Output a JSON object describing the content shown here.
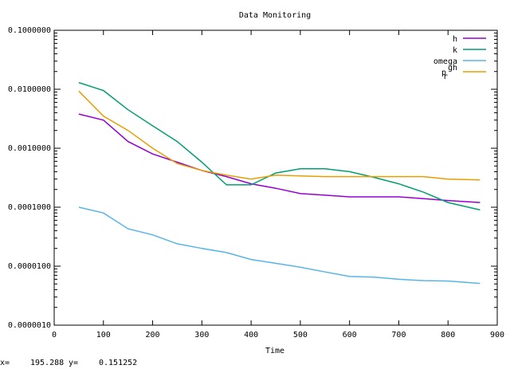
{
  "chart_data": {
    "type": "line",
    "title": "Data Monitoring",
    "xlabel": "Time",
    "ylabel": "",
    "xlim": [
      0,
      900
    ],
    "ylim": [
      1e-06,
      0.1
    ],
    "y_scale": "log",
    "grid": false,
    "legend_position": "top-right",
    "x_ticks": [
      "0",
      "100",
      "200",
      "300",
      "400",
      "500",
      "600",
      "700",
      "800",
      "900"
    ],
    "y_ticks": [
      "0.1000000",
      "0.0100000",
      "0.0010000",
      "0.0001000",
      "0.0000100",
      "0.0000010"
    ],
    "series": [
      {
        "name": "h",
        "color": "#9400d3",
        "x": [
          50,
          100,
          150,
          200,
          250,
          300,
          350,
          400,
          450,
          500,
          550,
          600,
          650,
          700,
          750,
          800,
          865
        ],
        "y": [
          0.0038,
          0.003,
          0.0013,
          0.0008,
          0.00058,
          0.00042,
          0.00033,
          0.00025,
          0.00021,
          0.00017,
          0.00016,
          0.00015,
          0.00015,
          0.00015,
          0.00014,
          0.00013,
          0.00012
        ]
      },
      {
        "name": "k",
        "color": "#009e73",
        "x": [
          50,
          100,
          150,
          200,
          250,
          300,
          350,
          400,
          450,
          500,
          550,
          600,
          650,
          700,
          750,
          800,
          865
        ],
        "y": [
          0.013,
          0.0095,
          0.0045,
          0.0024,
          0.0013,
          0.00058,
          0.00024,
          0.00024,
          0.00038,
          0.00045,
          0.00045,
          0.0004,
          0.00032,
          0.00025,
          0.00018,
          0.00012,
          9e-05
        ]
      },
      {
        "name": "omega",
        "color": "#56b4e9",
        "x": [
          50,
          100,
          150,
          200,
          250,
          300,
          350,
          400,
          450,
          500,
          550,
          600,
          650,
          700,
          750,
          800,
          865
        ],
        "y": [
          0.0001,
          8e-05,
          4.3e-05,
          3.4e-05,
          2.4e-05,
          2e-05,
          1.7e-05,
          1.3e-05,
          1.12e-05,
          9.6e-06,
          8e-06,
          6.7e-06,
          6.5e-06,
          6e-06,
          5.7e-06,
          5.6e-06,
          5.1e-06
        ]
      },
      {
        "name": "p_rgh",
        "label_main": "p",
        "label_sub": "r",
        "label_sup": "gh",
        "color": "#e69f00",
        "x": [
          50,
          100,
          150,
          200,
          250,
          300,
          350,
          400,
          450,
          500,
          550,
          600,
          650,
          700,
          750,
          800,
          865
        ],
        "y": [
          0.0093,
          0.0035,
          0.002,
          0.001,
          0.00055,
          0.00042,
          0.00035,
          0.0003,
          0.00035,
          0.00034,
          0.00033,
          0.00033,
          0.00033,
          0.00033,
          0.00033,
          0.0003,
          0.00029
        ]
      }
    ]
  },
  "status": {
    "x_label": "x=",
    "x_value": "195.288",
    "y_label": "y=",
    "y_value": "0.151252"
  }
}
